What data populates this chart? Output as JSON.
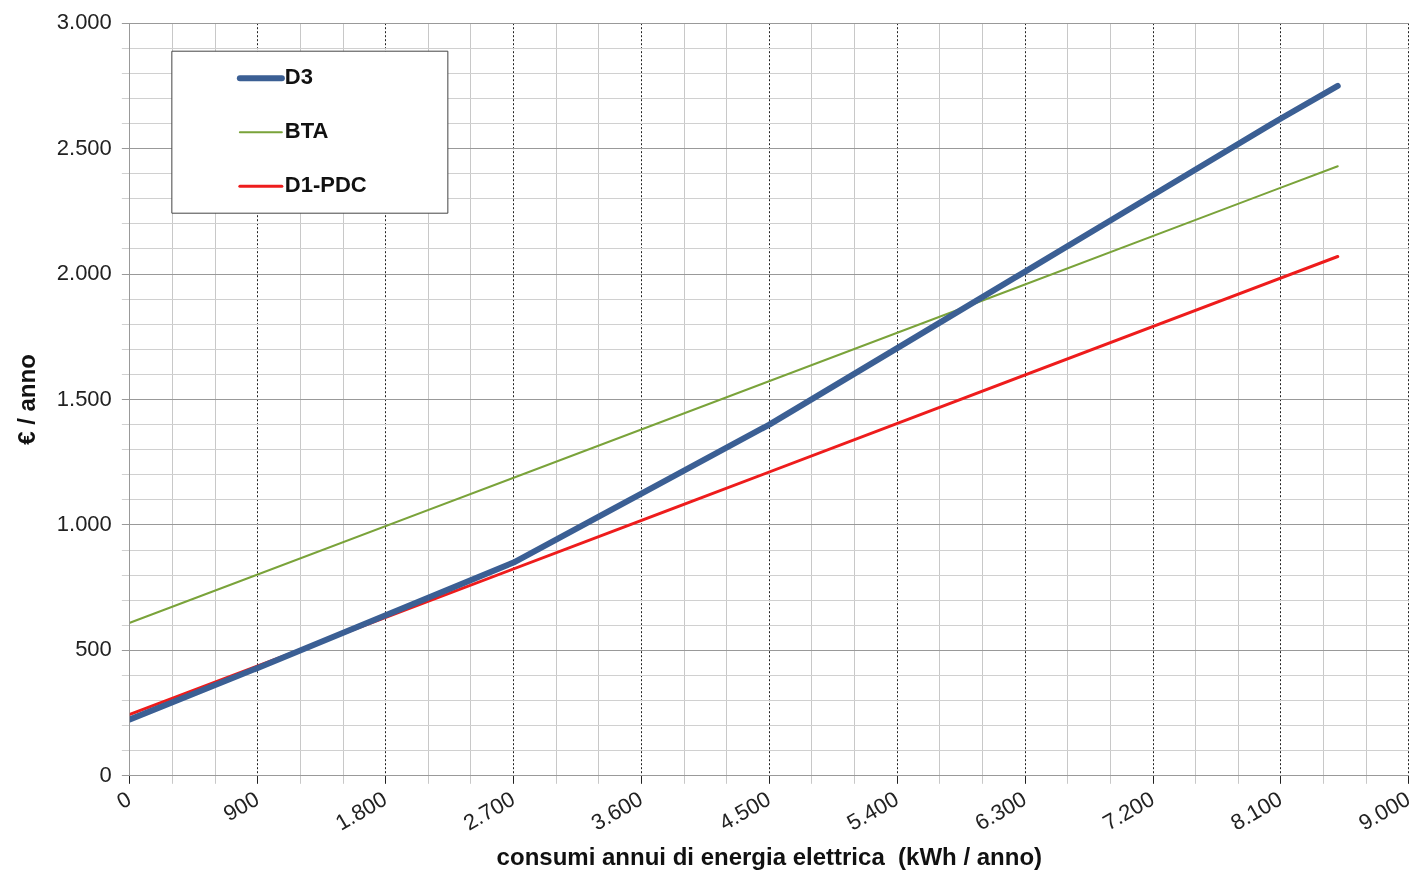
{
  "chart_data": {
    "type": "line",
    "xlabel": "consumi annui di energia elettrica  (kWh / anno)",
    "ylabel": "€ / anno",
    "xlim": [
      0,
      9000
    ],
    "ylim": [
      0,
      3000
    ],
    "xticks": [
      {
        "value": 0,
        "label": "0"
      },
      {
        "value": 300,
        "label": null
      },
      {
        "value": 600,
        "label": null
      },
      {
        "value": 900,
        "label": "900"
      },
      {
        "value": 1200,
        "label": null
      },
      {
        "value": 1500,
        "label": null
      },
      {
        "value": 1800,
        "label": "1.800"
      },
      {
        "value": 2100,
        "label": null
      },
      {
        "value": 2400,
        "label": null
      },
      {
        "value": 2700,
        "label": "2.700"
      },
      {
        "value": 3000,
        "label": null
      },
      {
        "value": 3300,
        "label": null
      },
      {
        "value": 3600,
        "label": "3.600"
      },
      {
        "value": 3900,
        "label": null
      },
      {
        "value": 4200,
        "label": null
      },
      {
        "value": 4500,
        "label": "4.500"
      },
      {
        "value": 4800,
        "label": null
      },
      {
        "value": 5100,
        "label": null
      },
      {
        "value": 5400,
        "label": "5.400"
      },
      {
        "value": 5700,
        "label": null
      },
      {
        "value": 6000,
        "label": null
      },
      {
        "value": 6300,
        "label": "6.300"
      },
      {
        "value": 6600,
        "label": null
      },
      {
        "value": 6900,
        "label": null
      },
      {
        "value": 7200,
        "label": "7.200"
      },
      {
        "value": 7500,
        "label": null
      },
      {
        "value": 7800,
        "label": null
      },
      {
        "value": 8100,
        "label": "8.100"
      },
      {
        "value": 8400,
        "label": null
      },
      {
        "value": 8700,
        "label": null
      },
      {
        "value": 9000,
        "label": "9.000"
      }
    ],
    "yticks": [
      {
        "value": 0,
        "label": "0"
      },
      {
        "value": 100,
        "label": null
      },
      {
        "value": 200,
        "label": null
      },
      {
        "value": 300,
        "label": null
      },
      {
        "value": 400,
        "label": null
      },
      {
        "value": 500,
        "label": "500"
      },
      {
        "value": 600,
        "label": null
      },
      {
        "value": 700,
        "label": null
      },
      {
        "value": 800,
        "label": null
      },
      {
        "value": 900,
        "label": null
      },
      {
        "value": 1000,
        "label": "1.000"
      },
      {
        "value": 1100,
        "label": null
      },
      {
        "value": 1200,
        "label": null
      },
      {
        "value": 1300,
        "label": null
      },
      {
        "value": 1400,
        "label": null
      },
      {
        "value": 1500,
        "label": "1.500"
      },
      {
        "value": 1600,
        "label": null
      },
      {
        "value": 1700,
        "label": null
      },
      {
        "value": 1800,
        "label": null
      },
      {
        "value": 1900,
        "label": null
      },
      {
        "value": 2000,
        "label": "2.000"
      },
      {
        "value": 2100,
        "label": null
      },
      {
        "value": 2200,
        "label": null
      },
      {
        "value": 2300,
        "label": null
      },
      {
        "value": 2400,
        "label": null
      },
      {
        "value": 2500,
        "label": "2.500"
      },
      {
        "value": 2600,
        "label": null
      },
      {
        "value": 2700,
        "label": null
      },
      {
        "value": 2800,
        "label": null
      },
      {
        "value": 2900,
        "label": null
      },
      {
        "value": 3000,
        "label": "3.000"
      }
    ],
    "grid": true,
    "legend": "top left",
    "marker": "none",
    "line_style": "solid",
    "series": [
      {
        "name": "D3",
        "color": "#3b5f94",
        "x": [
          0,
          900,
          1800,
          2700,
          3600,
          4500,
          5400,
          6300,
          7200,
          8100,
          8500
        ],
        "values": [
          225,
          430,
          640,
          850,
          1125,
          1400,
          1705,
          2010,
          2315,
          2620,
          2750
        ]
      },
      {
        "name": "BTA",
        "color": "#7aa33a",
        "x": [
          0,
          8500
        ],
        "values": [
          610,
          2430
        ]
      },
      {
        "name": "D1-PDC",
        "color": "#ee1c1c",
        "x": [
          0,
          8500
        ],
        "values": [
          245,
          2070
        ]
      }
    ]
  }
}
